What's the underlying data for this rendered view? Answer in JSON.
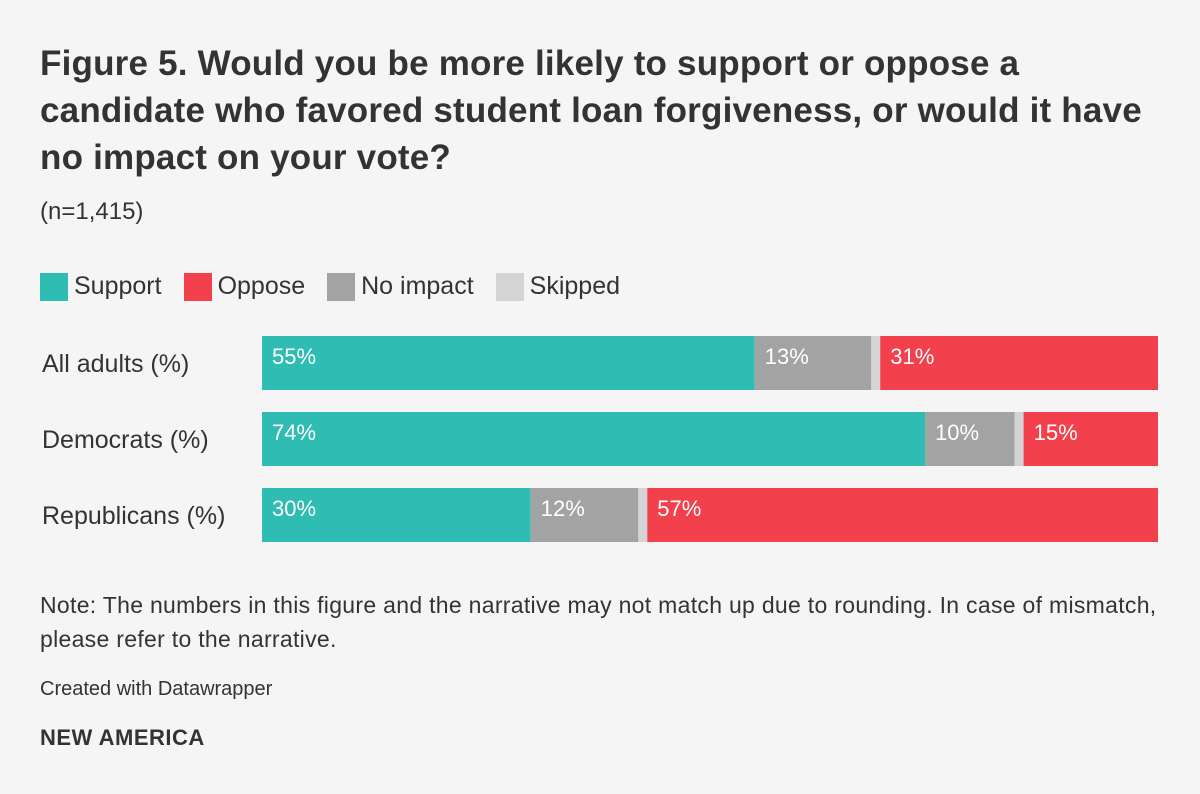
{
  "chart_data": {
    "type": "bar",
    "orientation": "horizontal",
    "stacked": true,
    "title": "Figure 5. Would you be more likely to support or oppose a candidate who favored student loan forgiveness, or would it have no impact on your vote?",
    "subtitle": "(n=1,415)",
    "categories": [
      "All adults (%)",
      "Democrats (%)",
      "Republicans (%)"
    ],
    "series": [
      {
        "name": "Support",
        "color": "#2fbdb3",
        "values": [
          55,
          74,
          30
        ],
        "labels": [
          "55%",
          "74%",
          "30%"
        ]
      },
      {
        "name": "No impact",
        "color": "#a3a3a3",
        "values": [
          13,
          10,
          12
        ],
        "labels": [
          "13%",
          "10%",
          "12%"
        ]
      },
      {
        "name": "Skipped",
        "color": "#d4d4d4",
        "values": [
          1,
          1,
          1
        ]
      },
      {
        "name": "Oppose",
        "color": "#f2404c",
        "values": [
          31,
          15,
          57
        ],
        "labels": [
          "31%",
          "15%",
          "57%"
        ]
      }
    ],
    "legend": [
      {
        "name": "Support",
        "color": "#2fbdb3"
      },
      {
        "name": "Oppose",
        "color": "#f2404c"
      },
      {
        "name": "No impact",
        "color": "#a3a3a3"
      },
      {
        "name": "Skipped",
        "color": "#d4d4d4"
      }
    ],
    "legend_position": "top-left",
    "xlim": [
      0,
      100
    ],
    "grid": false
  },
  "footer": {
    "note": "Note: The numbers in this figure and the narrative may not match up due to rounding. In case of mismatch, please refer to the narrative.",
    "credit": "Created with Datawrapper",
    "brand": "NEW AMERICA"
  }
}
